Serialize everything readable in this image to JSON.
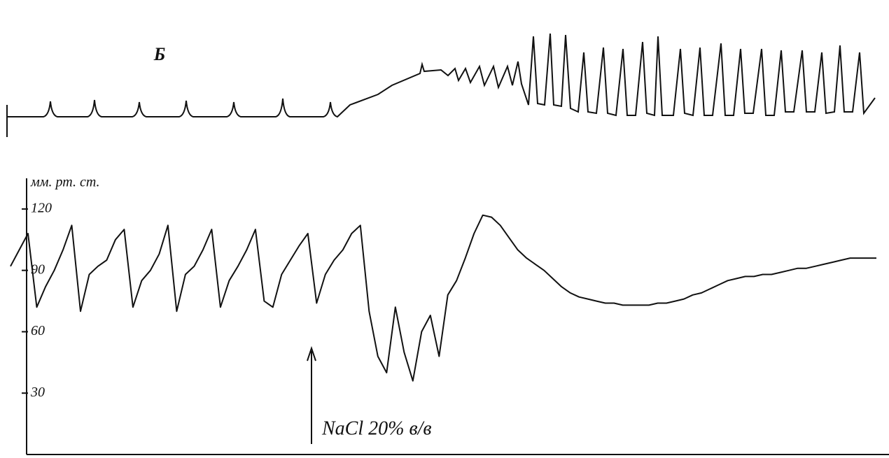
{
  "chart_data": {
    "type": "line",
    "panel_label": "Б",
    "y_label": "мм. рт. ст.",
    "annotation": "NaCl 20% в/в",
    "color": "#111111",
    "ylim": [
      0,
      135
    ],
    "yticks": [
      30,
      60,
      90,
      120
    ],
    "values": [
      92,
      100,
      108,
      72,
      82,
      90,
      100,
      112,
      70,
      88,
      92,
      95,
      105,
      110,
      72,
      85,
      90,
      98,
      112,
      70,
      88,
      92,
      100,
      110,
      72,
      85,
      92,
      100,
      110,
      75,
      72,
      88,
      95,
      102,
      108,
      74,
      88,
      95,
      100,
      108,
      112,
      70,
      48,
      40,
      72,
      50,
      36,
      60,
      68,
      48,
      78,
      85,
      96,
      108,
      117,
      116,
      112,
      106,
      100,
      96,
      93,
      90,
      86,
      82,
      79,
      77,
      76,
      75,
      74,
      74,
      73,
      73,
      73,
      73,
      74,
      74,
      75,
      76,
      78,
      79,
      81,
      83,
      85,
      86,
      87,
      87,
      88,
      88,
      89,
      90,
      91,
      91,
      92,
      93,
      94,
      95,
      96,
      96,
      96,
      96
    ]
  }
}
